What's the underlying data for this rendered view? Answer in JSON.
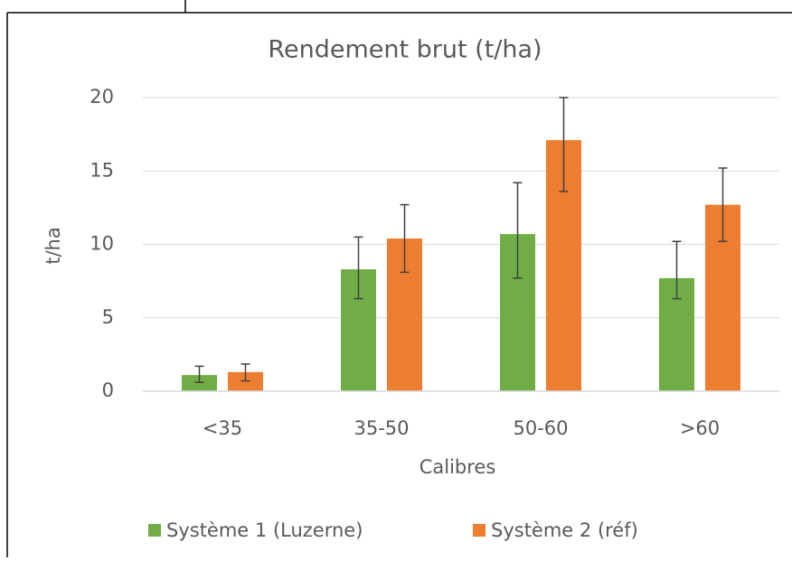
{
  "chart_data": {
    "type": "bar",
    "title": "Rendement brut (t/ha)",
    "x_label": "Calibres",
    "y_label": "t/ha",
    "categories": [
      "<35",
      "35-50",
      "50-60",
      ">60"
    ],
    "series": [
      {
        "name": "Système 1 (Luzerne)",
        "color": "#70ad47",
        "values": [
          1.1,
          8.3,
          10.7,
          7.7
        ],
        "error_plus": [
          0.6,
          2.2,
          3.5,
          2.5
        ],
        "error_minus": [
          0.5,
          2.0,
          3.0,
          1.4
        ]
      },
      {
        "name": "Système 2 (réf)",
        "color": "#ed7d31",
        "values": [
          1.3,
          10.4,
          17.1,
          12.7
        ],
        "error_plus": [
          0.55,
          2.3,
          2.9,
          2.5
        ],
        "error_minus": [
          0.6,
          2.3,
          3.5,
          2.5
        ]
      }
    ],
    "ylim": [
      0,
      20
    ],
    "yticks": [
      0,
      5,
      10,
      15,
      20
    ],
    "grid": true,
    "legend": "bottom"
  }
}
